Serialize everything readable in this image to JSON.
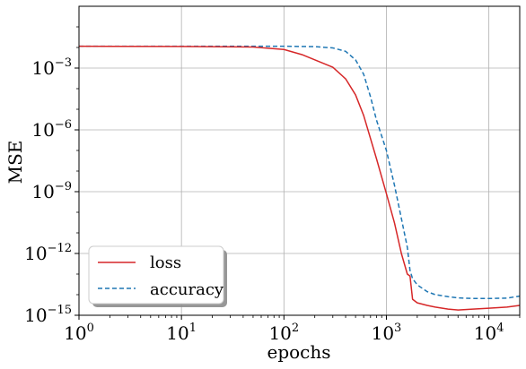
{
  "chart_data": {
    "type": "line",
    "xlabel": "epochs",
    "ylabel": "MSE",
    "xscale": "log",
    "yscale": "log",
    "xlim": [
      1,
      20000
    ],
    "ylim": [
      1e-15,
      1
    ],
    "grid": true,
    "legend_position": "lower-left",
    "x_ticks": [
      {
        "base": "10",
        "exp": "0",
        "value": 1
      },
      {
        "base": "10",
        "exp": "1",
        "value": 10
      },
      {
        "base": "10",
        "exp": "2",
        "value": 100
      },
      {
        "base": "10",
        "exp": "3",
        "value": 1000
      },
      {
        "base": "10",
        "exp": "4",
        "value": 10000
      }
    ],
    "y_ticks": [
      {
        "base": "10",
        "exp": "−3",
        "value": 0.001
      },
      {
        "base": "10",
        "exp": "−6",
        "value": 1e-06
      },
      {
        "base": "10",
        "exp": "−9",
        "value": 1e-09
      },
      {
        "base": "10",
        "exp": "−12",
        "value": 1e-12
      },
      {
        "base": "10",
        "exp": "−15",
        "value": 1e-15
      }
    ],
    "series": [
      {
        "name": "loss",
        "color": "#d62728",
        "style": "solid",
        "x": [
          1,
          10,
          50,
          100,
          150,
          200,
          300,
          400,
          500,
          600,
          800,
          1000,
          1200,
          1400,
          1600,
          1700,
          1800,
          2000,
          2500,
          3000,
          4000,
          5000,
          7000,
          10000,
          15000,
          20000
        ],
        "y": [
          0.0115,
          0.0112,
          0.0105,
          0.008,
          0.0045,
          0.0025,
          0.0011,
          0.0003,
          5e-05,
          5e-06,
          4e-08,
          8e-10,
          3e-11,
          1e-12,
          1e-13,
          8e-14,
          6e-15,
          4e-15,
          3e-15,
          2.5e-15,
          2e-15,
          1.8e-15,
          2e-15,
          2.2e-15,
          2.5e-15,
          3e-15
        ]
      },
      {
        "name": "accuracy",
        "color": "#1f77b4",
        "style": "dashed",
        "x": [
          1,
          10,
          100,
          200,
          300,
          400,
          500,
          600,
          700,
          800,
          1000,
          1200,
          1400,
          1600,
          1700,
          1800,
          2000,
          2500,
          3000,
          4000,
          5000,
          7000,
          10000,
          15000,
          20000
        ],
        "y": [
          0.0115,
          0.0115,
          0.0115,
          0.011,
          0.0095,
          0.0065,
          0.0025,
          0.0005,
          4e-05,
          3e-06,
          1e-07,
          2e-09,
          5e-11,
          2e-12,
          1.5e-13,
          6e-14,
          3e-14,
          1.4e-14,
          1e-14,
          8e-15,
          7e-15,
          6.5e-15,
          6.5e-15,
          6.8e-15,
          8.5e-15
        ]
      }
    ]
  }
}
